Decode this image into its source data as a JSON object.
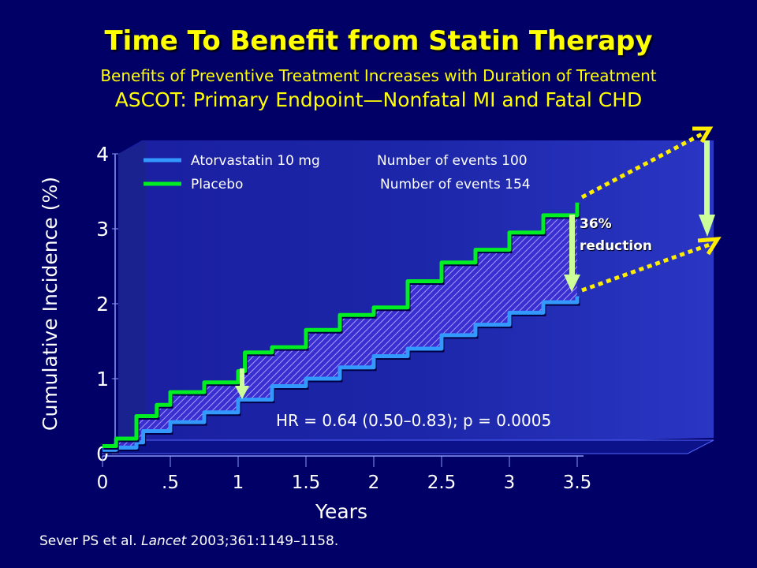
{
  "title": "Time To Benefit from Statin Therapy",
  "subtitle1": "Benefits of Preventive Treatment Increases with Duration of Treatment",
  "subtitle2": "ASCOT: Primary Endpoint—Nonfatal MI and Fatal CHD",
  "citation": {
    "authors": "Sever PS et al. ",
    "journal": "Lancet",
    "ref": " 2003;361:1149–1158."
  },
  "chart_data": {
    "type": "line",
    "title": "",
    "xlabel": "Years",
    "ylabel": "Cumulative Incidence (%)",
    "xlim": [
      0,
      3.5
    ],
    "ylim": [
      0,
      4
    ],
    "xticks": [
      "0",
      ".5",
      "1",
      "1.5",
      "2",
      "2.5",
      "3",
      "3.5"
    ],
    "xtick_values": [
      0,
      0.5,
      1,
      1.5,
      2,
      2.5,
      3,
      3.5
    ],
    "yticks": [
      "0",
      "1",
      "2",
      "3",
      "4"
    ],
    "series": [
      {
        "name": "Atorvastatin 10 mg",
        "events_label": "Number of events 100",
        "color": "#3399ff",
        "x": [
          0,
          0.1,
          0.25,
          0.3,
          0.5,
          0.75,
          1.0,
          1.25,
          1.5,
          1.75,
          2.0,
          2.25,
          2.5,
          2.75,
          3.0,
          3.25,
          3.5
        ],
        "y": [
          0.05,
          0.08,
          0.15,
          0.3,
          0.42,
          0.55,
          0.72,
          0.9,
          1.0,
          1.15,
          1.3,
          1.4,
          1.58,
          1.72,
          1.88,
          2.02,
          2.1
        ]
      },
      {
        "name": "Placebo",
        "events_label": "Number of events 154",
        "color": "#00ee22",
        "x": [
          0,
          0.1,
          0.25,
          0.4,
          0.5,
          0.75,
          1.0,
          1.05,
          1.25,
          1.5,
          1.75,
          2.0,
          2.25,
          2.5,
          2.75,
          3.0,
          3.25,
          3.5
        ],
        "y": [
          0.1,
          0.2,
          0.5,
          0.65,
          0.82,
          0.95,
          1.1,
          1.35,
          1.42,
          1.65,
          1.85,
          1.95,
          2.3,
          2.55,
          2.72,
          2.95,
          3.18,
          3.35
        ]
      }
    ],
    "annotations": {
      "hr": "HR = 0.64 (0.50–0.83); p = 0.0005",
      "reduction_pct": "36%",
      "reduction_word": "reduction"
    },
    "grid": false,
    "legend": "top-left"
  }
}
